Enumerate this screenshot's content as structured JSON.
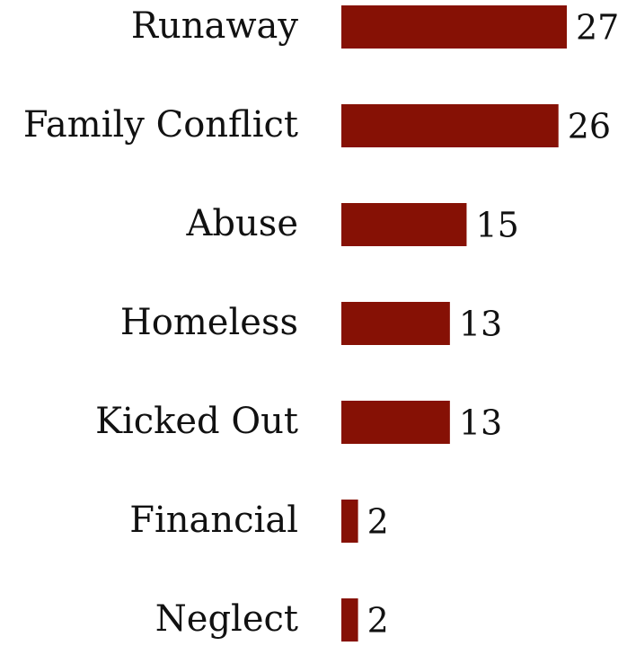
{
  "chart_data": {
    "type": "bar",
    "orientation": "horizontal",
    "categories": [
      "Runaway",
      "Family Conflict",
      "Abuse",
      "Homeless",
      "Kicked Out",
      "Financial",
      "Neglect"
    ],
    "values": [
      27,
      26,
      15,
      13,
      13,
      2,
      2
    ],
    "value_labels": [
      "27",
      "26",
      "15",
      "13",
      "13",
      "2",
      "2"
    ],
    "title": "",
    "xlabel": "",
    "ylabel": "",
    "xlim": [
      0,
      27
    ],
    "grid": false,
    "legend": "none",
    "bar_color": "#861105"
  }
}
